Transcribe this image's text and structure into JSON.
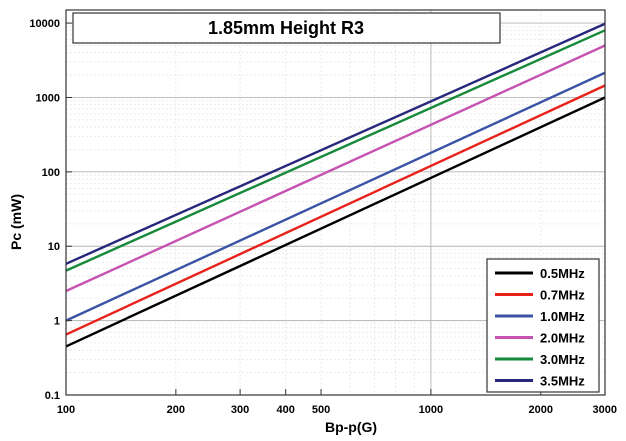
{
  "chart_data": {
    "type": "line",
    "title": "1.85mm Height R3",
    "xlabel": "Bp-p(G)",
    "ylabel": "Pc (mW)",
    "x_scale": "log",
    "y_scale": "log",
    "xlim": [
      100,
      3000
    ],
    "ylim": [
      0.1,
      15000
    ],
    "x_ticks": [
      100,
      200,
      300,
      400,
      500,
      1000,
      2000,
      3000
    ],
    "x_tick_labels": [
      "100",
      "200",
      "300",
      "400",
      "500",
      "1000",
      "2000",
      "3000"
    ],
    "y_ticks": [
      0.1,
      1,
      10,
      100,
      1000,
      10000
    ],
    "y_tick_labels": [
      "0.1",
      "1",
      "10",
      "100",
      "1000",
      "10000"
    ],
    "grid": true,
    "legend_position": "bottom-right",
    "x": [
      100,
      3000
    ],
    "series": [
      {
        "name": "0.5MHz",
        "color": "#000000",
        "values": [
          0.45,
          1000
        ]
      },
      {
        "name": "0.7MHz",
        "color": "#e8221b",
        "values": [
          0.65,
          1450
        ]
      },
      {
        "name": "1.0MHz",
        "color": "#3a53a4",
        "values": [
          1.0,
          2150
        ]
      },
      {
        "name": "2.0MHz",
        "color": "#c652b2",
        "values": [
          2.5,
          5000
        ]
      },
      {
        "name": "3.0MHz",
        "color": "#168a3a",
        "values": [
          4.7,
          8000
        ]
      },
      {
        "name": "3.5MHz",
        "color": "#27277c",
        "values": [
          5.8,
          9800
        ]
      }
    ]
  }
}
